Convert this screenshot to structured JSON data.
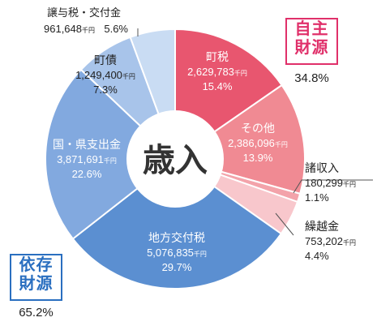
{
  "chart_data": {
    "type": "pie",
    "title": "歳入",
    "unit": "千円",
    "slices": [
      {
        "label": "町税",
        "value": 2629783,
        "percent": "15.4%",
        "color": "#e8566f",
        "text_color": "#ffffff"
      },
      {
        "label": "その他",
        "value": 2386096,
        "percent": "13.9%",
        "color": "#f08a93",
        "text_color": "#ffffff"
      },
      {
        "label": "諸収入",
        "value": 180299,
        "percent": "1.1%",
        "color": "#f3a3aa",
        "text_color": "#222222"
      },
      {
        "label": "繰越金",
        "value": 753202,
        "percent": "4.4%",
        "color": "#f8c7cc",
        "text_color": "#222222"
      },
      {
        "label": "地方交付税",
        "value": 5076835,
        "percent": "29.7%",
        "color": "#5b8fd1",
        "text_color": "#ffffff"
      },
      {
        "label": "国・県支出金",
        "value": 3871691,
        "percent": "22.6%",
        "color": "#82a9df",
        "text_color": "#ffffff"
      },
      {
        "label": "町債",
        "value": 1249400,
        "percent": "7.3%",
        "color": "#a8c4ea",
        "text_color": "#222222"
      },
      {
        "label": "譲与税・交付金",
        "value": 961648,
        "percent": "5.6%",
        "color": "#c9dcf3",
        "text_color": "#222222"
      }
    ],
    "value_texts": [
      "2,629,783",
      "2,386,096",
      "180,299",
      "753,202",
      "5,076,835",
      "3,871,691",
      "1,249,400",
      "961,648"
    ],
    "groups": [
      {
        "line1": "自主",
        "line2": "財源",
        "percent": "34.8%",
        "color": "#e0306a"
      },
      {
        "line1": "依存",
        "line2": "財源",
        "percent": "65.2%",
        "color": "#2a6fc0"
      }
    ]
  }
}
